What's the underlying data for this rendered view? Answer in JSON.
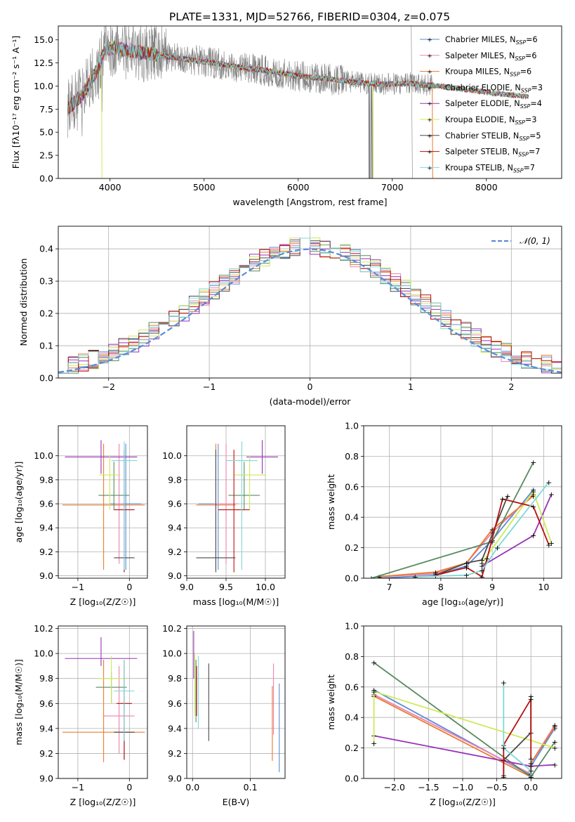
{
  "figure_title": "PLATE=1331, MJD=52766, FIBERID=0304, z=0.075",
  "colors": {
    "Chabrier MILES": "#5b8bd8",
    "Salpeter MILES": "#ee82ae",
    "Kroupa MILES": "#e87b30",
    "Chabrier ELODIE": "#5a8a60",
    "Salpeter ELODIE": "#9932b8",
    "Kroupa ELODIE": "#cdea58",
    "Chabrier STELIB": "#4a4a4a",
    "Salpeter STELIB": "#b81010",
    "Kroupa STELIB": "#7fd8d8",
    "grey": "#808080",
    "gaussian": "#5b8bd8"
  },
  "chart_data": [
    {
      "id": "spectrum",
      "type": "line",
      "xlabel": "wavelength [Angstrom, rest frame]",
      "ylabel": "Flux [fλ10⁻¹⁷ erg cm⁻² s⁻¹ A⁻¹]",
      "xlim": [
        3450,
        8800
      ],
      "ylim": [
        0,
        16.5
      ],
      "xticks": [
        4000,
        5000,
        6000,
        7000,
        8000
      ],
      "yticks": [
        0.0,
        2.5,
        5.0,
        7.5,
        10.0,
        12.5,
        15.0
      ],
      "legend_position": "top-right",
      "legend": [
        {
          "name": "Chabrier MILES, N",
          "sub": "SSP",
          "suffix": "=6"
        },
        {
          "name": "Salpeter MILES, N",
          "sub": "SSP",
          "suffix": "=6"
        },
        {
          "name": "Kroupa MILES, N",
          "sub": "SSP",
          "suffix": "=6"
        },
        {
          "name": "Chabrier ELODIE, N",
          "sub": "SSP",
          "suffix": "=3"
        },
        {
          "name": "Salpeter ELODIE, N",
          "sub": "SSP",
          "suffix": "=4"
        },
        {
          "name": "Kroupa ELODIE, N",
          "sub": "SSP",
          "suffix": "=3"
        },
        {
          "name": "Chabrier STELIB, N",
          "sub": "SSP",
          "suffix": "=5"
        },
        {
          "name": "Salpeter STELIB, N",
          "sub": "SSP",
          "suffix": "=7"
        },
        {
          "name": "Kroupa STELIB, N",
          "sub": "SSP",
          "suffix": "=7"
        }
      ],
      "model_trend": [
        [
          3550,
          7.6
        ],
        [
          3700,
          9.0
        ],
        [
          3850,
          11.5
        ],
        [
          3950,
          14.0
        ],
        [
          4050,
          14.2
        ],
        [
          4200,
          13.8
        ],
        [
          4500,
          13.4
        ],
        [
          4800,
          12.9
        ],
        [
          5100,
          12.5
        ],
        [
          5400,
          12.0
        ],
        [
          5700,
          11.6
        ],
        [
          6000,
          11.1
        ],
        [
          6300,
          10.8
        ],
        [
          6600,
          10.4
        ],
        [
          6900,
          10.2
        ],
        [
          7200,
          10.3
        ],
        [
          7500,
          10.0
        ],
        [
          7800,
          9.6
        ],
        [
          8100,
          9.2
        ],
        [
          8400,
          8.9
        ]
      ]
    },
    {
      "id": "residuals",
      "type": "histogram",
      "xlabel": "(data-model)/error",
      "ylabel": "Normed distribution",
      "xlim": [
        -2.5,
        2.5
      ],
      "ylim": [
        0,
        0.47
      ],
      "xticks": [
        -2,
        -1,
        0,
        1,
        2
      ],
      "yticks": [
        0.0,
        0.1,
        0.2,
        0.3,
        0.4
      ],
      "legend": [
        "𝒩(0, 1)"
      ],
      "legend_position": "top-right",
      "bin_width": 0.1
    },
    {
      "id": "age_vs_Z",
      "type": "errorbar",
      "xlabel": "Z [log₁₀(Z/Z☉)]",
      "ylabel": "age  [log₁₀(age/yr)]",
      "xlim": [
        -1.38,
        0.35
      ],
      "ylim": [
        8.98,
        10.25
      ],
      "xticks": [
        -1,
        0
      ],
      "yticks": [
        9.0,
        9.2,
        9.4,
        9.6,
        9.8,
        10.0
      ],
      "points": [
        {
          "model": "Chabrier MILES",
          "x": -0.07,
          "y": 9.6,
          "xerr": 0.3,
          "yerr": [
            9.05,
            10.1
          ]
        },
        {
          "model": "Salpeter MILES",
          "x": -0.2,
          "y": 9.6,
          "xerr": 0.08,
          "yerr": [
            9.1,
            10.1
          ]
        },
        {
          "model": "Kroupa MILES",
          "x": -0.5,
          "y": 9.59,
          "xerr": 0.8,
          "yerr": [
            9.05,
            10.1
          ]
        },
        {
          "model": "Chabrier ELODIE",
          "x": -0.3,
          "y": 9.67,
          "xerr": 0.3,
          "yerr": [
            9.55,
            9.95
          ]
        },
        {
          "model": "Salpeter ELODIE",
          "x": -0.55,
          "y": 9.99,
          "xerr": 0.7,
          "yerr": [
            9.85,
            10.13
          ]
        },
        {
          "model": "Kroupa ELODIE",
          "x": -0.38,
          "y": 9.84,
          "xerr": 0.2,
          "yerr": [
            9.55,
            10.0
          ]
        },
        {
          "model": "Chabrier STELIB",
          "x": -0.1,
          "y": 9.15,
          "xerr": 0.2,
          "yerr": [
            9.03,
            10.05
          ]
        },
        {
          "model": "Salpeter STELIB",
          "x": -0.1,
          "y": 9.55,
          "xerr": 0.2,
          "yerr": [
            9.03,
            10.05
          ]
        },
        {
          "model": "Kroupa STELIB",
          "x": -0.1,
          "y": 9.96,
          "xerr": 0.25,
          "yerr": [
            9.05,
            10.12
          ]
        }
      ]
    },
    {
      "id": "age_vs_mass",
      "type": "errorbar",
      "xlabel": "mass [log₁₀(M/M☉)]",
      "ylabel": "",
      "xlim": [
        9.0,
        10.25
      ],
      "ylim": [
        8.98,
        10.25
      ],
      "xticks": [
        9.0,
        9.5,
        10.0
      ],
      "yticks": [
        9.0,
        9.2,
        9.4,
        9.6,
        9.8,
        10.0
      ],
      "points": [
        {
          "model": "Chabrier MILES",
          "x": 9.4,
          "y": 9.6,
          "xerr": 0.25,
          "yerr": [
            9.05,
            10.1
          ]
        },
        {
          "model": "Salpeter MILES",
          "x": 9.5,
          "y": 9.6,
          "xerr": 0.15,
          "yerr": [
            9.1,
            10.1
          ]
        },
        {
          "model": "Kroupa MILES",
          "x": 9.37,
          "y": 9.59,
          "xerr": 0.25,
          "yerr": [
            9.05,
            10.1
          ]
        },
        {
          "model": "Chabrier ELODIE",
          "x": 9.73,
          "y": 9.67,
          "xerr": 0.2,
          "yerr": [
            9.55,
            9.95
          ]
        },
        {
          "model": "Salpeter ELODIE",
          "x": 9.96,
          "y": 9.99,
          "xerr": 0.2,
          "yerr": [
            9.85,
            10.13
          ]
        },
        {
          "model": "Kroupa ELODIE",
          "x": 9.8,
          "y": 9.84,
          "xerr": 0.2,
          "yerr": [
            9.55,
            10.0
          ]
        },
        {
          "model": "Chabrier STELIB",
          "x": 9.37,
          "y": 9.15,
          "xerr": 0.25,
          "yerr": [
            9.03,
            10.05
          ]
        },
        {
          "model": "Salpeter STELIB",
          "x": 9.6,
          "y": 9.55,
          "xerr": 0.2,
          "yerr": [
            9.03,
            10.05
          ]
        },
        {
          "model": "Kroupa STELIB",
          "x": 9.7,
          "y": 9.96,
          "xerr": 0.2,
          "yerr": [
            9.05,
            10.12
          ]
        }
      ]
    },
    {
      "id": "weight_vs_age",
      "type": "line",
      "xlabel": "age  [log₁₀(age/yr)]",
      "ylabel": "mass weight",
      "xlim": [
        6.5,
        10.35
      ],
      "ylim": [
        0,
        1.0
      ],
      "xticks": [
        7,
        8,
        9,
        10
      ],
      "yticks": [
        0.0,
        0.2,
        0.4,
        0.6,
        0.8,
        1.0
      ],
      "series": [
        {
          "model": "Chabrier MILES",
          "x": [
            6.8,
            7.9,
            8.5,
            9.0,
            9.8
          ],
          "y": [
            0.0,
            0.02,
            0.08,
            0.25,
            0.58
          ]
        },
        {
          "model": "Salpeter MILES",
          "x": [
            6.8,
            7.9,
            8.5,
            9.0,
            9.8
          ],
          "y": [
            0.01,
            0.03,
            0.1,
            0.3,
            0.55
          ]
        },
        {
          "model": "Kroupa MILES",
          "x": [
            6.8,
            7.9,
            8.5,
            9.0,
            9.8
          ],
          "y": [
            0.01,
            0.04,
            0.1,
            0.32,
            0.54
          ]
        },
        {
          "model": "Chabrier ELODIE",
          "x": [
            6.65,
            9.0,
            9.8
          ],
          "y": [
            0.0,
            0.24,
            0.76
          ]
        },
        {
          "model": "Salpeter ELODIE",
          "x": [
            8.8,
            9.8,
            10.15
          ],
          "y": [
            0.08,
            0.28,
            0.55
          ]
        },
        {
          "model": "Kroupa ELODIE",
          "x": [
            8.8,
            9.8,
            10.15
          ],
          "y": [
            0.1,
            0.57,
            0.23
          ]
        },
        {
          "model": "Chabrier STELIB",
          "x": [
            7.9,
            8.5,
            8.8,
            9.3
          ],
          "y": [
            0.02,
            0.1,
            0.12,
            0.54
          ]
        },
        {
          "model": "Salpeter STELIB",
          "x": [
            7.9,
            8.5,
            8.8,
            8.9,
            9.2,
            9.8,
            10.1
          ],
          "y": [
            0.02,
            0.07,
            0.01,
            0.13,
            0.52,
            0.47,
            0.22
          ]
        },
        {
          "model": "Kroupa STELIB",
          "x": [
            7.5,
            8.5,
            8.8,
            9.1,
            10.1
          ],
          "y": [
            0.01,
            0.02,
            0.05,
            0.2,
            0.63
          ]
        }
      ]
    },
    {
      "id": "mass_vs_Z",
      "type": "errorbar",
      "xlabel": "Z [log₁₀(Z/Z☉)]",
      "ylabel": "mass [log₁₀(M/M☉)]",
      "xlim": [
        -1.38,
        0.35
      ],
      "ylim": [
        9.0,
        10.22
      ],
      "xticks": [
        -1,
        0
      ],
      "yticks": [
        9.0,
        9.2,
        9.4,
        9.6,
        9.8,
        10.0,
        10.2
      ],
      "points": [
        {
          "model": "Chabrier MILES",
          "x": -0.1,
          "y": 9.37,
          "xerr": 0.2,
          "yerr": [
            9.15,
            9.9
          ]
        },
        {
          "model": "Salpeter MILES",
          "x": -0.2,
          "y": 9.5,
          "xerr": 0.3,
          "yerr": [
            9.2,
            9.9
          ]
        },
        {
          "model": "Kroupa MILES",
          "x": -0.5,
          "y": 9.37,
          "xerr": 0.8,
          "yerr": [
            9.13,
            9.95
          ]
        },
        {
          "model": "Chabrier ELODIE",
          "x": -0.35,
          "y": 9.73,
          "xerr": 0.3,
          "yerr": [
            9.6,
            9.85
          ]
        },
        {
          "model": "Salpeter ELODIE",
          "x": -0.55,
          "y": 9.96,
          "xerr": 0.7,
          "yerr": [
            9.9,
            10.13
          ]
        },
        {
          "model": "Kroupa ELODIE",
          "x": -0.35,
          "y": 9.8,
          "xerr": 0.25,
          "yerr": [
            9.6,
            9.98
          ]
        },
        {
          "model": "Chabrier STELIB",
          "x": -0.1,
          "y": 9.37,
          "xerr": 0.2,
          "yerr": [
            9.15,
            9.95
          ]
        },
        {
          "model": "Salpeter STELIB",
          "x": -0.1,
          "y": 9.6,
          "xerr": 0.15,
          "yerr": [
            9.15,
            9.95
          ]
        },
        {
          "model": "Kroupa STELIB",
          "x": -0.1,
          "y": 9.7,
          "xerr": 0.2,
          "yerr": [
            9.3,
            9.95
          ]
        }
      ]
    },
    {
      "id": "mass_vs_ebv",
      "type": "errorbar",
      "xlabel": "E(B-V)",
      "ylabel": "",
      "xlim": [
        -0.01,
        0.16
      ],
      "ylim": [
        9.0,
        10.22
      ],
      "xticks": [
        0.0,
        0.1
      ],
      "yticks": [
        9.0,
        9.2,
        9.4,
        9.6,
        9.8,
        10.0,
        10.2
      ],
      "points": [
        {
          "model": "Chabrier MILES",
          "x": 0.15,
          "yerr": [
            9.05,
            9.76
          ]
        },
        {
          "model": "Salpeter MILES",
          "x": 0.14,
          "yerr": [
            9.35,
            9.92
          ]
        },
        {
          "model": "Kroupa MILES",
          "x": 0.138,
          "yerr": [
            9.14,
            9.74
          ]
        },
        {
          "model": "Chabrier ELODIE",
          "x": 0.006,
          "yerr": [
            9.45,
            9.95
          ]
        },
        {
          "model": "Salpeter ELODIE",
          "x": 0.002,
          "yerr": [
            9.8,
            10.18
          ]
        },
        {
          "model": "Kroupa ELODIE",
          "x": 0.004,
          "yerr": [
            9.5,
            10.0
          ]
        },
        {
          "model": "Chabrier STELIB",
          "x": 0.028,
          "yerr": [
            9.3,
            9.92
          ]
        },
        {
          "model": "Salpeter STELIB",
          "x": 0.007,
          "yerr": [
            9.5,
            9.9
          ]
        },
        {
          "model": "Kroupa STELIB",
          "x": 0.01,
          "yerr": [
            9.4,
            9.98
          ]
        }
      ]
    },
    {
      "id": "weight_vs_Z",
      "type": "line",
      "xlabel": "Z [log₁₀(Z/Z☉)]",
      "ylabel": "mass weight",
      "xlim": [
        -2.45,
        0.45
      ],
      "ylim": [
        0,
        1.0
      ],
      "xticks": [
        -2.0,
        -1.5,
        -1.0,
        -0.5,
        0.0
      ],
      "yticks": [
        0.0,
        0.2,
        0.4,
        0.6,
        0.8,
        1.0
      ],
      "series": [
        {
          "model": "Chabrier MILES",
          "x": [
            -2.3,
            0.0,
            0.0,
            0.35
          ],
          "y": [
            0.58,
            0.02,
            0.08,
            0.33
          ]
        },
        {
          "model": "Salpeter MILES",
          "x": [
            -2.3,
            0.0,
            0.0,
            0.35
          ],
          "y": [
            0.55,
            0.03,
            0.1,
            0.35
          ]
        },
        {
          "model": "Kroupa MILES",
          "x": [
            -2.3,
            0.0,
            0.0,
            0.35
          ],
          "y": [
            0.54,
            0.01,
            0.1,
            0.34
          ]
        },
        {
          "model": "Chabrier ELODIE",
          "x": [
            -2.3,
            0.0,
            0.35
          ],
          "y": [
            0.76,
            0.01,
            0.24
          ]
        },
        {
          "model": "Salpeter ELODIE",
          "x": [
            -2.3,
            0.0,
            0.35
          ],
          "y": [
            0.28,
            0.08,
            0.09
          ]
        },
        {
          "model": "Kroupa ELODIE",
          "x": [
            -2.3,
            -2.3,
            0.35
          ],
          "y": [
            0.23,
            0.57,
            0.2
          ]
        },
        {
          "model": "Chabrier STELIB",
          "x": [
            -0.4,
            -0.4,
            0.0,
            0.0
          ],
          "y": [
            0.02,
            0.12,
            0.3,
            0.54
          ]
        },
        {
          "model": "Salpeter STELIB",
          "x": [
            -0.4,
            -0.4,
            0.0,
            0.0
          ],
          "y": [
            0.01,
            0.22,
            0.52,
            0.13
          ]
        },
        {
          "model": "Kroupa STELIB",
          "x": [
            -0.4,
            -0.4,
            0.0,
            0.0
          ],
          "y": [
            0.63,
            0.2,
            0.05,
            0.01
          ]
        }
      ]
    }
  ]
}
